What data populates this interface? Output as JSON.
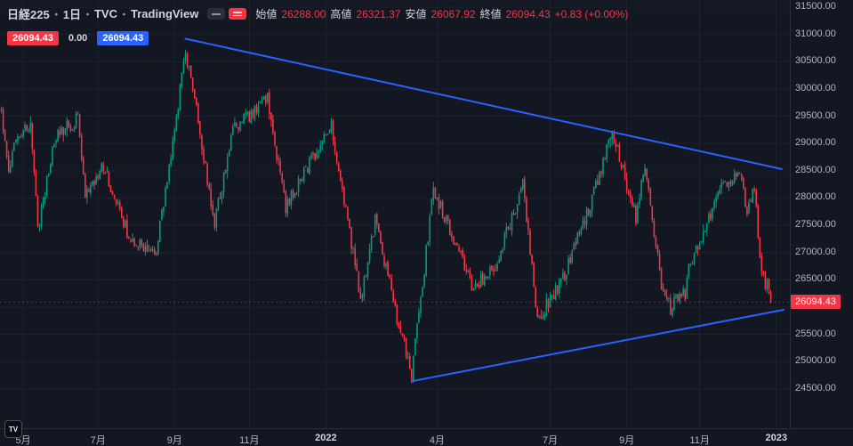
{
  "header": {
    "symbol": "日経225",
    "interval": "1日",
    "exchange": "TVC",
    "brand": "TradingView",
    "separator": "・",
    "ohlc": {
      "open_label": "始値",
      "open": "26288.00",
      "high_label": "高値",
      "high": "26321.37",
      "low_label": "安値",
      "low": "26067.92",
      "close_label": "終値",
      "close": "26094.43",
      "change": "+0.83 (+0.00%)"
    }
  },
  "trading_panel": {
    "sell": "26094.43",
    "spread": "0.00",
    "buy": "26094.43"
  },
  "price_axis": {
    "ticks": [
      31500,
      31000,
      30500,
      30000,
      29500,
      29000,
      28500,
      28000,
      27500,
      27000,
      26500,
      26000,
      25500,
      25000,
      24500
    ],
    "current_label": "26094.43"
  },
  "time_axis": {
    "labels": [
      {
        "label": "5月",
        "day": 12
      },
      {
        "label": "7月",
        "day": 53
      },
      {
        "label": "9月",
        "day": 95
      },
      {
        "label": "11月",
        "day": 136
      },
      {
        "label": "2022",
        "day": 178,
        "year": true
      },
      {
        "label": "4月",
        "day": 239
      },
      {
        "label": "7月",
        "day": 301
      },
      {
        "label": "9月",
        "day": 343
      },
      {
        "label": "11月",
        "day": 383
      },
      {
        "label": "2023",
        "day": 425,
        "year": true
      }
    ]
  },
  "logo": {
    "text": "TV"
  },
  "colors": {
    "background": "#131722",
    "grid": "#1e222d",
    "border": "#2a2e39",
    "text_muted": "#b2b5be",
    "text_bright": "#d1d4dc",
    "up": "#089981",
    "down": "#f23645",
    "trendline": "#2962ff",
    "sell_button": "#f23645",
    "buy_button": "#2962ff"
  },
  "chart_data": {
    "type": "candlestick",
    "title": "日経225・1日・TVC・TradingView",
    "symbol": "Nikkei 225 (日経225)",
    "interval": "1D",
    "x_range": "2021-04 to 2023-01",
    "ylim": [
      23780,
      31630
    ],
    "grid": true,
    "num_candles": 423,
    "last_candle": {
      "open": 26288.0,
      "high": 26321.37,
      "low": 26067.92,
      "close": 26094.43
    },
    "current_price": 26094.43,
    "change": "+0.83 (+0.00%)",
    "price_path_anchors": [
      [
        0,
        29620
      ],
      [
        4,
        28510
      ],
      [
        8,
        29060
      ],
      [
        16,
        29360
      ],
      [
        20,
        27450
      ],
      [
        30,
        29150
      ],
      [
        42,
        29440
      ],
      [
        46,
        28010
      ],
      [
        56,
        28600
      ],
      [
        70,
        27280
      ],
      [
        85,
        27010
      ],
      [
        101,
        30670
      ],
      [
        103,
        30400
      ],
      [
        117,
        27530
      ],
      [
        127,
        29260
      ],
      [
        146,
        29810
      ],
      [
        156,
        27820
      ],
      [
        176,
        29070
      ],
      [
        181,
        29330
      ],
      [
        197,
        26170
      ],
      [
        205,
        27580
      ],
      [
        216,
        25970
      ],
      [
        225,
        24720
      ],
      [
        237,
        28150
      ],
      [
        258,
        26390
      ],
      [
        270,
        26660
      ],
      [
        286,
        28230
      ],
      [
        294,
        25770
      ],
      [
        308,
        26520
      ],
      [
        322,
        27800
      ],
      [
        335,
        29220
      ],
      [
        348,
        27630
      ],
      [
        353,
        28610
      ],
      [
        362,
        26430
      ],
      [
        367,
        25940
      ],
      [
        370,
        26220
      ],
      [
        375,
        26240
      ],
      [
        377,
        26780
      ],
      [
        385,
        27340
      ],
      [
        396,
        28260
      ],
      [
        405,
        28380
      ],
      [
        409,
        27780
      ],
      [
        413,
        28160
      ],
      [
        417,
        26570
      ],
      [
        420,
        26400
      ],
      [
        422,
        26094.43
      ]
    ],
    "trendlines": [
      {
        "name": "descending-resistance",
        "from_day": 101,
        "from_price": 30920,
        "to_day": 428,
        "to_price": 28530
      },
      {
        "name": "ascending-support",
        "from_day": 225,
        "from_price": 24640,
        "to_day": 429,
        "to_price": 25950
      }
    ],
    "noise_seed": 11
  }
}
